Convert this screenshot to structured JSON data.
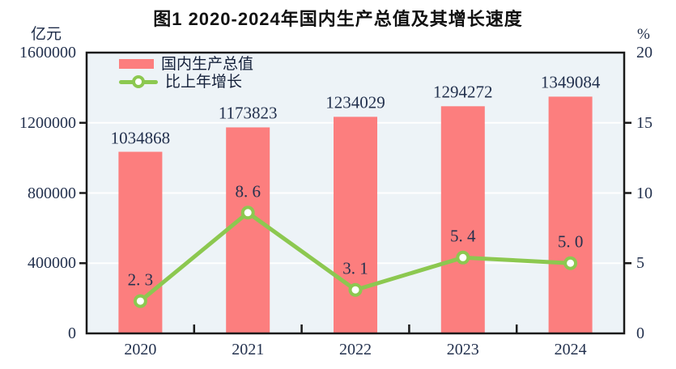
{
  "title": "图1  2020-2024年国内生产总值及其增长速度",
  "left_axis": {
    "unit": "亿元",
    "tick_labels": [
      "1600000",
      "1200000",
      "800000",
      "400000",
      "0"
    ]
  },
  "right_axis": {
    "unit": "%",
    "tick_labels": [
      "20",
      "15",
      "10",
      "5",
      "0"
    ]
  },
  "legend": {
    "items": [
      {
        "label": "国内生产总值",
        "marker": "bar-swatch"
      },
      {
        "label": "比上年增长",
        "marker": "line-with-circle-marker"
      }
    ]
  },
  "chart_data": {
    "type": "bar",
    "subtype": "bar-line-combo",
    "title": "图1  2020-2024年国内生产总值及其增长速度",
    "categories": [
      "2020",
      "2021",
      "2022",
      "2023",
      "2024"
    ],
    "series": [
      {
        "name": "国内生产总值",
        "type": "bar",
        "axis": "left",
        "unit": "亿元",
        "values": [
          1034868,
          1173823,
          1234029,
          1294272,
          1349084
        ],
        "labels": [
          "1034868",
          "1173823",
          "1234029",
          "1294272",
          "1349084"
        ],
        "color": "#FC7E7E"
      },
      {
        "name": "比上年增长",
        "type": "line",
        "axis": "right",
        "unit": "%",
        "values": [
          2.3,
          8.6,
          3.1,
          5.4,
          5.0
        ],
        "labels": [
          "2. 3",
          "8. 6",
          "3. 1",
          "5. 4",
          "5. 0"
        ],
        "color": "#8CC850",
        "marker": "circle-white-fill-green-ring"
      }
    ],
    "left_ylim": [
      0,
      1600000
    ],
    "left_step": 400000,
    "right_ylim": [
      0,
      20
    ],
    "right_step": 5,
    "grid": true,
    "grid_color": "#FFFFFF",
    "legend_position": "top-left-inside"
  },
  "colors": {
    "bar": "#FC7E7E",
    "line": "#8CC850",
    "plot_background": "#EDF3F7",
    "gridline": "#FFFFFF",
    "axis": "#1A1A1A",
    "number_text": "#23314E",
    "title_text": "#111111",
    "page_background": "#FFFFFF"
  }
}
